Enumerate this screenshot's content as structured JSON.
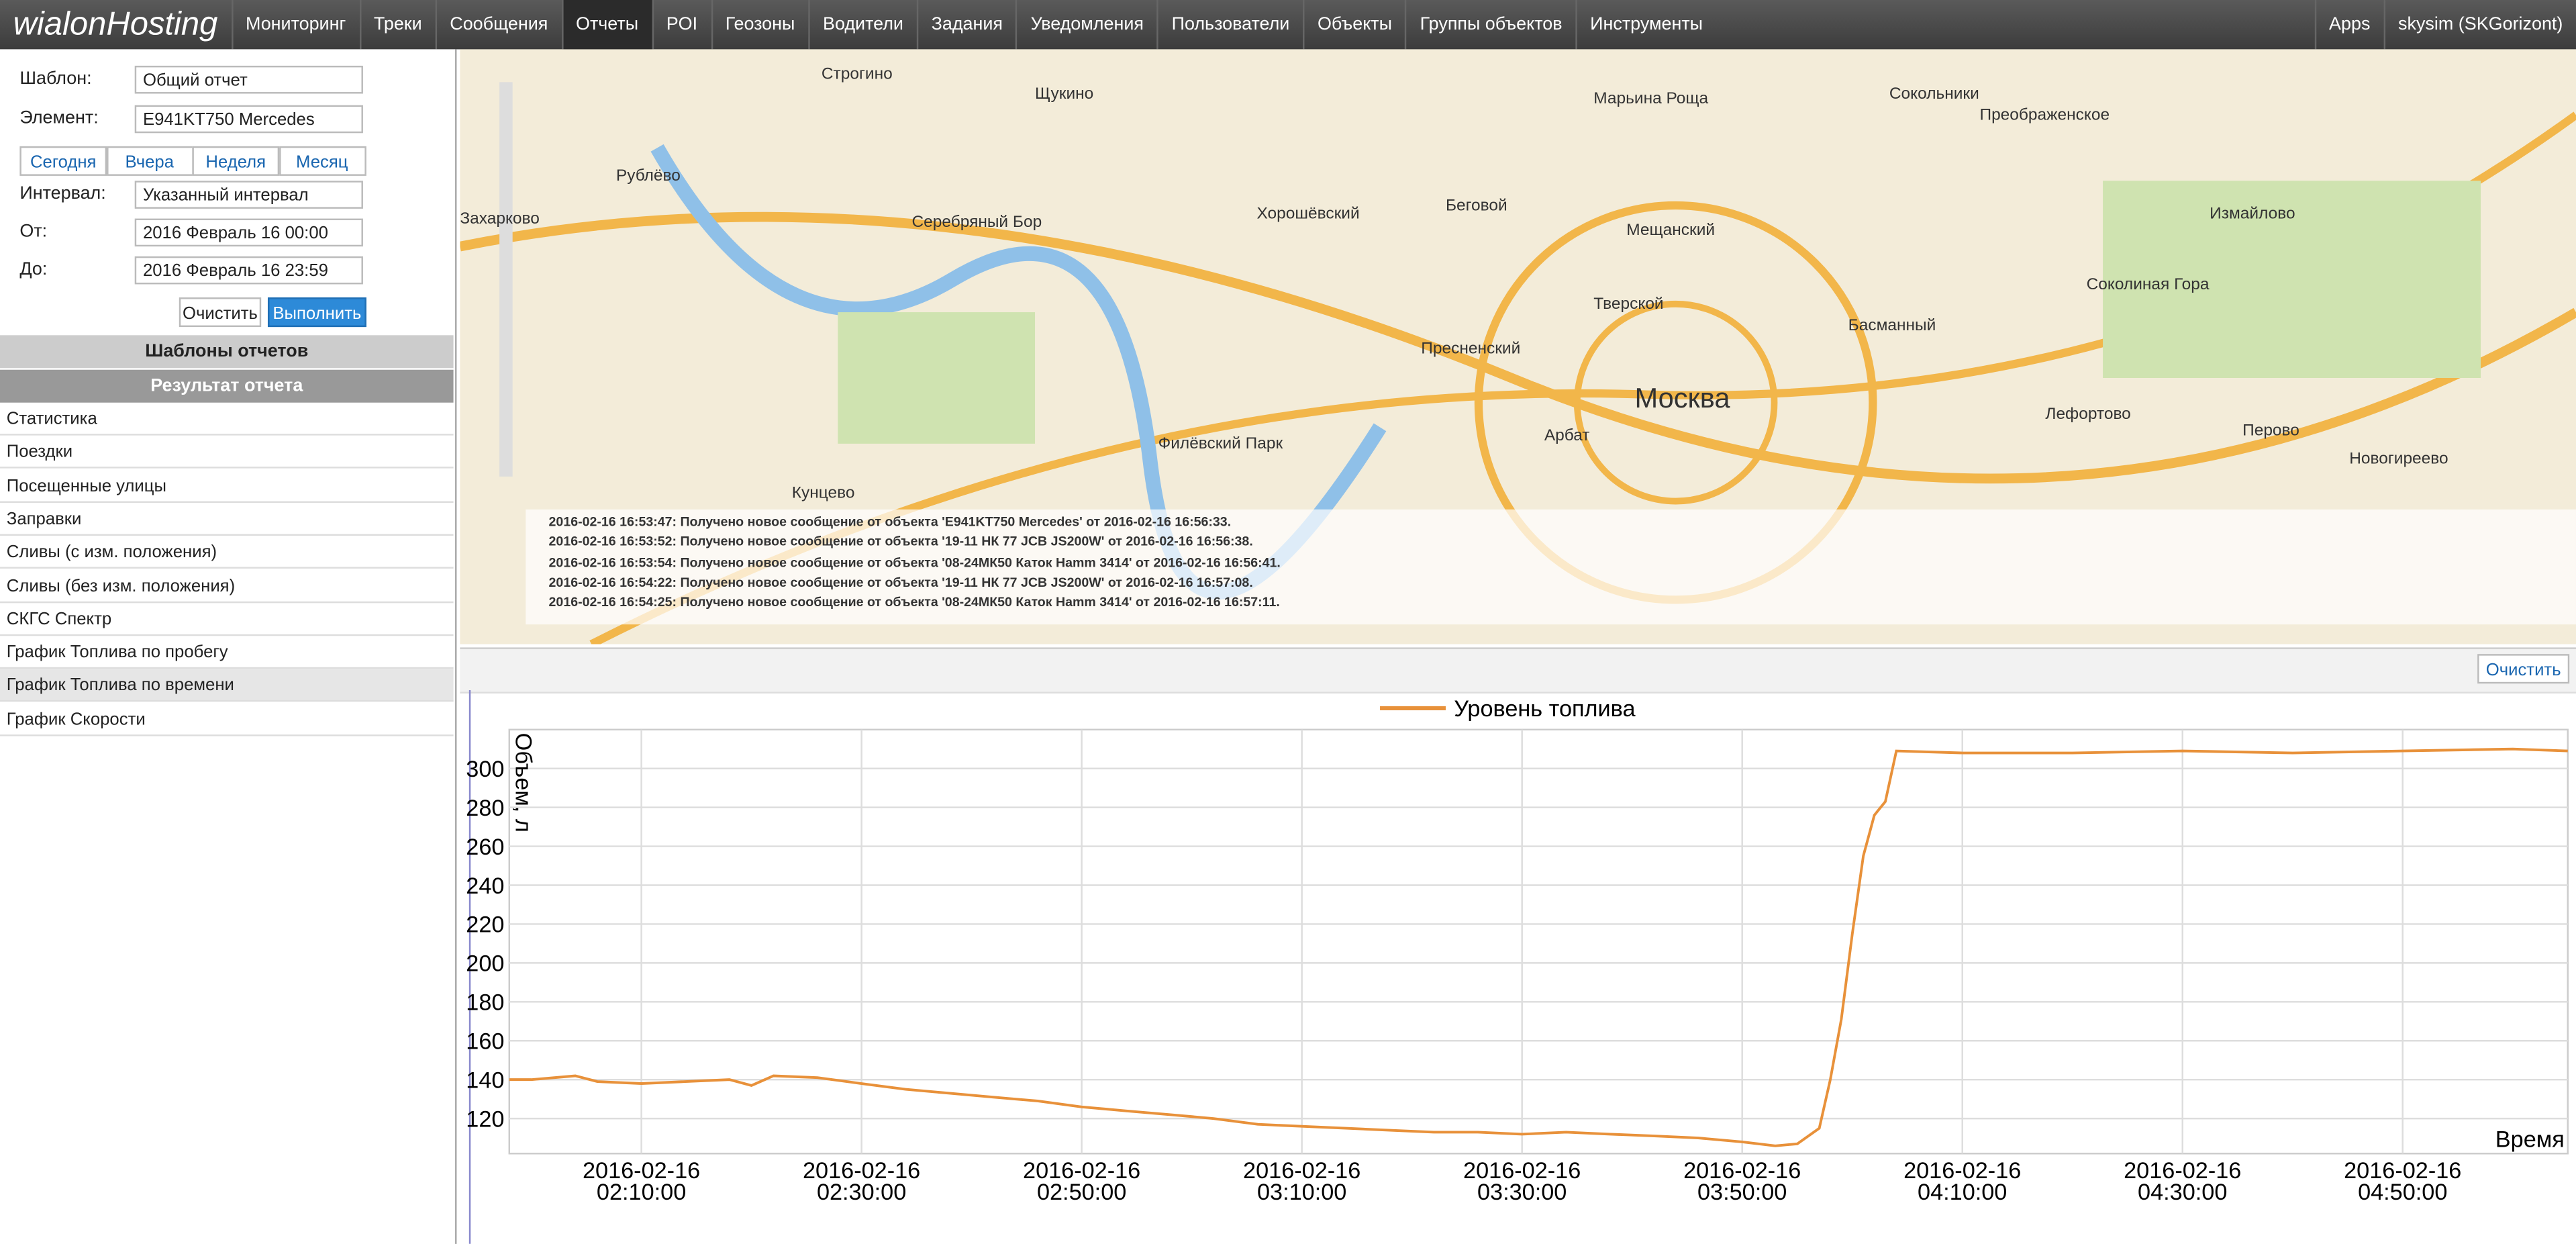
{
  "nav": {
    "logo": "wialonHosting",
    "items": [
      "Мониторинг",
      "Треки",
      "Сообщения",
      "Отчеты",
      "POI",
      "Геозоны",
      "Водители",
      "Задания",
      "Уведомления",
      "Пользователи",
      "Объекты",
      "Группы объектов",
      "Инструменты"
    ],
    "apps": "Apps",
    "user": "skysim (SKGorizont)"
  },
  "panel": {
    "template_label": "Шаблон:",
    "template_value": "Общий отчет",
    "element_label": "Элемент:",
    "element_value": "E941KT750 Mercedes",
    "periods": [
      "Сегодня",
      "Вчера",
      "Неделя",
      "Месяц"
    ],
    "interval_label": "Интервал:",
    "interval_value": "Указанный интервал",
    "from_label": "От:",
    "from_value": "2016 Февраль 16 00:00",
    "to_label": "До:",
    "to_value": "2016 Февраль 16 23:59",
    "clear": "Очистить",
    "run": "Выполнить",
    "templates_header": "Шаблоны отчетов",
    "result_header": "Результат отчета",
    "reports": [
      "Статистика",
      "Поездки",
      "Посещенные улицы",
      "Заправки",
      "Сливы (с изм. положения)",
      "Сливы (без изм. положения)",
      "СКГС Спектр",
      "График Топлива по пробегу",
      "График Топлива по времени",
      "График Скорости"
    ]
  },
  "map": {
    "labels": [
      "Строгино",
      "Щукино",
      "Рублёво",
      "Серебряный Бор",
      "Хорошёвский",
      "Беговой",
      "Марьина Роща",
      "Мещанский",
      "Сокольники",
      "Преображенское",
      "Измайлово",
      "Захарково",
      "Пресненский",
      "Тверской",
      "Басманный",
      "Соколиная Гора",
      "Москва",
      "Филёвский Парк",
      "Арбат",
      "Лефортово",
      "Перово",
      "Кунцево",
      "Новогиреево"
    ],
    "messages": [
      "2016-02-16 16:53:47: Получено новое сообщение от объекта 'E941KT750 Mercedes' от 2016-02-16 16:56:33.",
      "2016-02-16 16:53:52: Получено новое сообщение от объекта '19-11 НК 77 JCB JS200W' от 2016-02-16 16:56:38.",
      "2016-02-16 16:53:54: Получено новое сообщение от объекта '08-24МК50 Каток Hamm 3414' от 2016-02-16 16:56:41.",
      "2016-02-16 16:54:22: Получено новое сообщение от объекта '19-11 НК 77 JCB JS200W' от 2016-02-16 16:57:08.",
      "2016-02-16 16:54:25: Получено новое сообщение от объекта '08-24МК50 Каток Hamm 3414' от 2016-02-16 16:57:11."
    ]
  },
  "toolbar": {
    "clear": "Очистить"
  },
  "chart_data": {
    "type": "line",
    "y_label": "Объем, л",
    "x_label": "Время",
    "x": [
      "2016-02-16 01:58:00",
      "2016-02-16 02:00:00",
      "2016-02-16 02:04:00",
      "2016-02-16 02:06:00",
      "2016-02-16 02:10:00",
      "2016-02-16 02:14:00",
      "2016-02-16 02:18:00",
      "2016-02-16 02:20:00",
      "2016-02-16 02:22:00",
      "2016-02-16 02:26:00",
      "2016-02-16 02:30:00",
      "2016-02-16 02:34:00",
      "2016-02-16 02:38:00",
      "2016-02-16 02:42:00",
      "2016-02-16 02:46:00",
      "2016-02-16 02:50:00",
      "2016-02-16 02:54:00",
      "2016-02-16 02:58:00",
      "2016-02-16 03:02:00",
      "2016-02-16 03:06:00",
      "2016-02-16 03:10:00",
      "2016-02-16 03:14:00",
      "2016-02-16 03:18:00",
      "2016-02-16 03:22:00",
      "2016-02-16 03:26:00",
      "2016-02-16 03:30:00",
      "2016-02-16 03:34:00",
      "2016-02-16 03:38:00",
      "2016-02-16 03:42:00",
      "2016-02-16 03:46:00",
      "2016-02-16 03:50:00",
      "2016-02-16 03:53:00",
      "2016-02-16 03:55:00",
      "2016-02-16 03:57:00",
      "2016-02-16 03:58:00",
      "2016-02-16 03:59:00",
      "2016-02-16 04:00:00",
      "2016-02-16 04:01:00",
      "2016-02-16 04:02:00",
      "2016-02-16 04:03:00",
      "2016-02-16 04:04:00",
      "2016-02-16 04:10:00",
      "2016-02-16 04:20:00",
      "2016-02-16 04:30:00",
      "2016-02-16 04:40:00",
      "2016-02-16 04:50:00",
      "2016-02-16 05:00:00",
      "2016-02-16 05:05:00"
    ],
    "series": [
      {
        "name": "Уровень топлива",
        "color": "#e8913a",
        "values": [
          140,
          140,
          142,
          139,
          138,
          139,
          140,
          137,
          142,
          141,
          138,
          135,
          133,
          131,
          129,
          126,
          124,
          122,
          120,
          117,
          116,
          115,
          114,
          113,
          113,
          112,
          113,
          112,
          111,
          110,
          108,
          106,
          107,
          115,
          140,
          171,
          215,
          255,
          276,
          283,
          309,
          308,
          308,
          309,
          308,
          309,
          310,
          309
        ]
      }
    ],
    "xlim": [
      "2016-02-16 01:58:00",
      "2016-02-16 05:05:00"
    ],
    "xticks": [
      "2016-02-16 02:10:00",
      "2016-02-16 02:30:00",
      "2016-02-16 02:50:00",
      "2016-02-16 03:10:00",
      "2016-02-16 03:30:00",
      "2016-02-16 03:50:00",
      "2016-02-16 04:10:00",
      "2016-02-16 04:30:00",
      "2016-02-16 04:50:00"
    ],
    "ylim": [
      102,
      320
    ],
    "yticks": [
      120,
      140,
      160,
      180,
      200,
      220,
      240,
      260,
      280,
      300
    ],
    "grid": true
  }
}
